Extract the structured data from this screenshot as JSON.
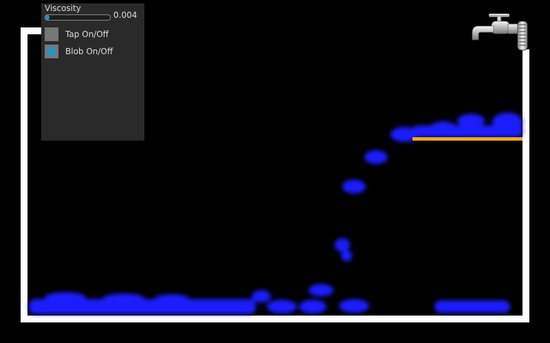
{
  "controls": {
    "viscosity": {
      "label": "Viscosity",
      "value": "0.004",
      "fill_fraction": 0.05
    },
    "tap_toggle": {
      "label": "Tap On/Off",
      "state": "off"
    },
    "blob_toggle": {
      "label": "Blob On/Off",
      "state": "on"
    }
  },
  "colors": {
    "background": "#000000",
    "container": "#ffffff",
    "fluid": "#1a1aff",
    "ledge": "#f0a81c",
    "panel": "#2a2a2a",
    "accent": "#2f8fbf"
  },
  "icons": {
    "tap": "water-tap-icon"
  }
}
